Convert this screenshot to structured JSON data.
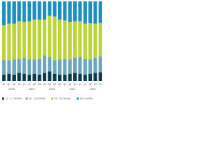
{
  "chart_data": {
    "type": "stacked-bar",
    "categories": [
      "Q1",
      "Q2",
      "Q3",
      "Q4",
      "Q1",
      "Q2",
      "Q3",
      "Q4",
      "Q1",
      "Q2",
      "Q3",
      "Q4",
      "Q1",
      "Q2",
      "Q3",
      "Q4",
      "Q1",
      "Q2",
      "Q3",
      "Q4"
    ],
    "years": [
      "2018",
      "2019",
      "2020",
      "2021",
      "2022"
    ],
    "ylim": [
      0,
      100
    ],
    "series": [
      {
        "name": "12 - 17 months",
        "color": "#0d3b4c",
        "values": [
          8,
          9,
          8,
          10,
          9,
          8,
          9,
          8,
          10,
          12,
          9,
          8,
          8,
          9,
          10,
          9,
          8,
          9,
          10,
          11
        ]
      },
      {
        "name": "18 - 23 months",
        "color": "#6aa7bf",
        "values": [
          18,
          17,
          19,
          18,
          20,
          19,
          18,
          20,
          22,
          18,
          17,
          19,
          20,
          18,
          19,
          21,
          20,
          18,
          19,
          20
        ]
      },
      {
        "name": "24 - 35 months",
        "color": "#bcd434",
        "values": [
          44,
          46,
          45,
          47,
          45,
          48,
          50,
          49,
          45,
          52,
          55,
          50,
          48,
          47,
          46,
          45,
          44,
          46,
          43,
          42
        ]
      },
      {
        "name": "36+ months",
        "color": "#1a8fc2",
        "values": [
          30,
          28,
          28,
          25,
          26,
          25,
          23,
          23,
          23,
          18,
          19,
          23,
          24,
          26,
          25,
          25,
          28,
          27,
          28,
          27
        ]
      }
    ]
  }
}
